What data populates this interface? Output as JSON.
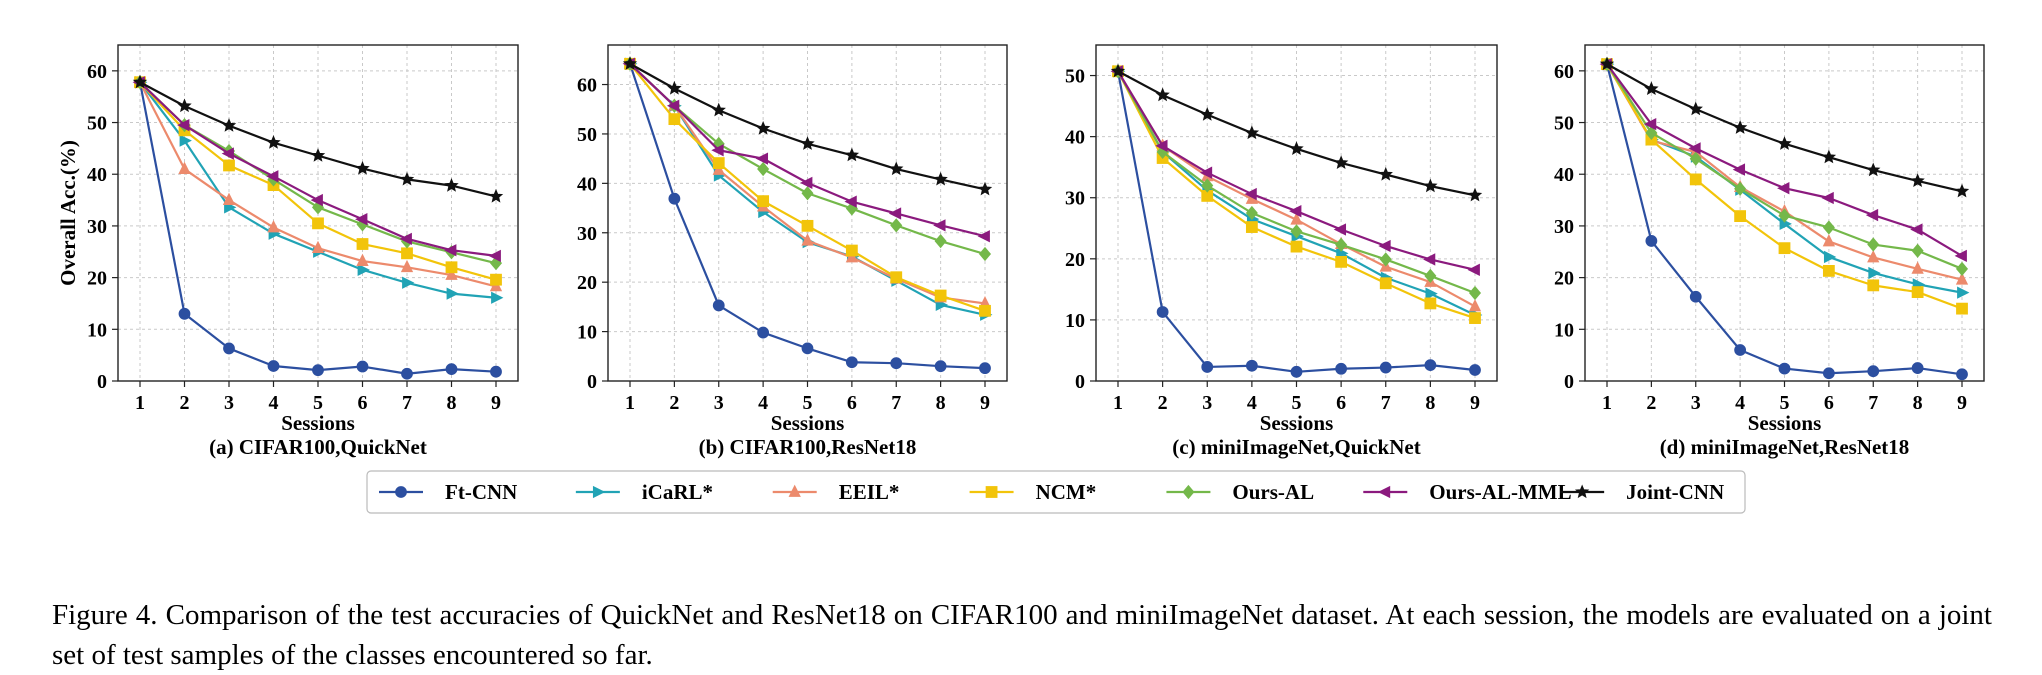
{
  "figure": {
    "caption": "Figure 4. Comparison of the test accuracies of QuickNet and ResNet18 on CIFAR100 and miniImageNet dataset.  At each session, the models are evaluated on a joint set of test samples of the classes encountered so far.",
    "legend": [
      {
        "name": "Ft-CNN",
        "color": "#2c4fa0",
        "marker": "circle"
      },
      {
        "name": "iCaRL*",
        "color": "#21a3b5",
        "marker": "triangle-right"
      },
      {
        "name": "EEIL*",
        "color": "#ec8a6c",
        "marker": "triangle-up"
      },
      {
        "name": "NCM*",
        "color": "#f2c40a",
        "marker": "square"
      },
      {
        "name": "Ours-AL",
        "color": "#74b84a",
        "marker": "diamond"
      },
      {
        "name": "Ours-AL-MML",
        "color": "#8b1a7e",
        "marker": "triangle-left"
      },
      {
        "name": "Joint-CNN",
        "color": "#111111",
        "marker": "star"
      }
    ]
  },
  "chart_data": [
    {
      "type": "line",
      "title": "(a) CIFAR100,QuickNet",
      "xlabel": "Sessions",
      "ylabel": "Overall Acc.(%)",
      "x": [
        1,
        2,
        3,
        4,
        5,
        6,
        7,
        8,
        9
      ],
      "ylim": [
        0,
        65
      ],
      "yticks": [
        0,
        10,
        20,
        30,
        40,
        50,
        60
      ],
      "grid": true,
      "series": [
        {
          "name": "Ft-CNN",
          "values": [
            57.8,
            13.0,
            6.3,
            2.9,
            2.1,
            2.8,
            1.4,
            2.3,
            1.8
          ]
        },
        {
          "name": "iCaRL*",
          "values": [
            57.8,
            46.5,
            33.6,
            28.5,
            25.0,
            21.5,
            19.0,
            16.9,
            16.1
          ]
        },
        {
          "name": "EEIL*",
          "values": [
            57.8,
            41.0,
            35.0,
            29.7,
            25.7,
            23.2,
            22.0,
            20.5,
            18.3
          ]
        },
        {
          "name": "NCM*",
          "values": [
            57.8,
            48.5,
            41.7,
            37.9,
            30.5,
            26.5,
            24.7,
            22.0,
            19.6
          ]
        },
        {
          "name": "Ours-AL",
          "values": [
            57.8,
            49.5,
            44.5,
            39.0,
            33.6,
            30.3,
            27.0,
            24.9,
            22.8
          ]
        },
        {
          "name": "Ours-AL-MML",
          "values": [
            57.8,
            49.5,
            44.0,
            39.6,
            35.0,
            31.3,
            27.5,
            25.3,
            24.2
          ]
        },
        {
          "name": "Joint-CNN",
          "values": [
            57.8,
            53.2,
            49.4,
            46.1,
            43.6,
            41.1,
            39.0,
            37.8,
            35.7
          ]
        }
      ]
    },
    {
      "type": "line",
      "title": "(b) CIFAR100,ResNet18",
      "xlabel": "Sessions",
      "ylabel": "",
      "x": [
        1,
        2,
        3,
        4,
        5,
        6,
        7,
        8,
        9
      ],
      "ylim": [
        0,
        68
      ],
      "yticks": [
        0,
        10,
        20,
        30,
        40,
        50,
        60
      ],
      "grid": true,
      "series": [
        {
          "name": "Ft-CNN",
          "values": [
            64.2,
            36.9,
            15.3,
            9.8,
            6.6,
            3.8,
            3.6,
            3.0,
            2.6
          ]
        },
        {
          "name": "iCaRL*",
          "values": [
            64.2,
            55.7,
            41.6,
            34.2,
            28.1,
            25.2,
            20.3,
            15.4,
            13.4
          ]
        },
        {
          "name": "EEIL*",
          "values": [
            64.2,
            55.7,
            42.7,
            35.3,
            28.4,
            25.0,
            20.7,
            16.9,
            15.7
          ]
        },
        {
          "name": "NCM*",
          "values": [
            64.2,
            53.0,
            44.1,
            36.4,
            31.4,
            26.4,
            21.0,
            17.3,
            14.2
          ]
        },
        {
          "name": "Ours-AL",
          "values": [
            64.2,
            55.7,
            48.0,
            42.9,
            38.0,
            34.9,
            31.5,
            28.3,
            25.7
          ]
        },
        {
          "name": "Ours-AL-MML",
          "values": [
            64.2,
            55.7,
            46.7,
            45.0,
            40.1,
            36.3,
            33.9,
            31.5,
            29.3
          ]
        },
        {
          "name": "Joint-CNN",
          "values": [
            64.2,
            59.2,
            54.8,
            51.1,
            48.0,
            45.7,
            42.9,
            40.8,
            38.8
          ]
        }
      ]
    },
    {
      "type": "line",
      "title": "(c) miniImageNet,QuickNet",
      "xlabel": "Sessions",
      "ylabel": "",
      "x": [
        1,
        2,
        3,
        4,
        5,
        6,
        7,
        8,
        9
      ],
      "ylim": [
        0,
        55
      ],
      "yticks": [
        0,
        10,
        20,
        30,
        40,
        50
      ],
      "grid": true,
      "series": [
        {
          "name": "Ft-CNN",
          "values": [
            50.7,
            11.3,
            2.3,
            2.5,
            1.5,
            2.0,
            2.2,
            2.6,
            1.8
          ]
        },
        {
          "name": "iCaRL*",
          "values": [
            50.7,
            37.5,
            31.2,
            26.5,
            23.7,
            20.9,
            16.9,
            14.3,
            10.8
          ]
        },
        {
          "name": "EEIL*",
          "values": [
            50.7,
            38.5,
            33.5,
            29.8,
            26.4,
            22.4,
            18.7,
            16.2,
            12.2
          ]
        },
        {
          "name": "NCM*",
          "values": [
            50.7,
            36.5,
            30.3,
            25.2,
            22.0,
            19.5,
            16.0,
            12.7,
            10.3
          ]
        },
        {
          "name": "Ours-AL",
          "values": [
            50.7,
            37.5,
            32.0,
            27.5,
            24.5,
            22.3,
            19.9,
            17.2,
            14.4
          ]
        },
        {
          "name": "Ours-AL-MML",
          "values": [
            50.7,
            38.5,
            34.1,
            30.6,
            27.8,
            24.8,
            22.1,
            19.9,
            18.2
          ]
        },
        {
          "name": "Joint-CNN",
          "values": [
            50.7,
            46.8,
            43.6,
            40.6,
            38.0,
            35.7,
            33.8,
            31.9,
            30.4
          ]
        }
      ]
    },
    {
      "type": "line",
      "title": "(d) miniImageNet,ResNet18",
      "xlabel": "Sessions",
      "ylabel": "",
      "x": [
        1,
        2,
        3,
        4,
        5,
        6,
        7,
        8,
        9
      ],
      "ylim": [
        0,
        65
      ],
      "yticks": [
        0,
        10,
        20,
        30,
        40,
        50,
        60
      ],
      "grid": true,
      "series": [
        {
          "name": "Ft-CNN",
          "values": [
            61.3,
            27.1,
            16.3,
            6.0,
            2.4,
            1.5,
            1.9,
            2.5,
            1.3
          ]
        },
        {
          "name": "iCaRL*",
          "values": [
            61.3,
            46.7,
            43.4,
            37.0,
            30.4,
            24.0,
            20.9,
            18.7,
            17.1
          ]
        },
        {
          "name": "EEIL*",
          "values": [
            61.3,
            46.5,
            44.3,
            37.5,
            32.8,
            27.0,
            23.9,
            21.7,
            19.6
          ]
        },
        {
          "name": "NCM*",
          "values": [
            61.3,
            46.7,
            39.0,
            31.9,
            25.7,
            21.3,
            18.5,
            17.2,
            14.0
          ]
        },
        {
          "name": "Ours-AL",
          "values": [
            61.3,
            48.0,
            43.0,
            37.2,
            32.0,
            29.7,
            26.4,
            25.2,
            21.7
          ]
        },
        {
          "name": "Ours-AL-MML",
          "values": [
            61.3,
            49.7,
            45.0,
            40.9,
            37.3,
            35.4,
            32.1,
            29.3,
            24.2
          ]
        },
        {
          "name": "Joint-CNN",
          "values": [
            61.3,
            56.5,
            52.6,
            49.0,
            45.9,
            43.3,
            40.8,
            38.7,
            36.7
          ]
        }
      ]
    }
  ]
}
